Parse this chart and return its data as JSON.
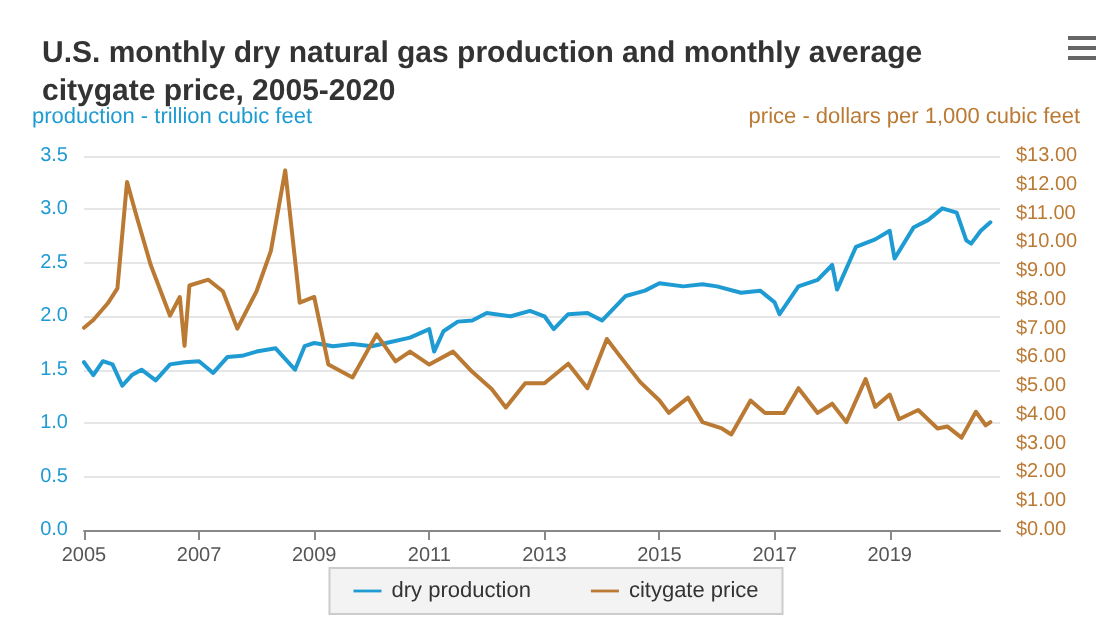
{
  "chart_data": {
    "type": "line",
    "title": "U.S. monthly dry natural gas production and monthly average citygate price, 2005-2020",
    "ylabel": "production - trillion cubic feet",
    "y2label": "price - dollars per 1,000 cubic feet",
    "series": [
      {
        "name": "dry production",
        "color": "#1f9bd3",
        "x": [
          "2005-01",
          "2005-03",
          "2005-05",
          "2005-07",
          "2005-09",
          "2005-11",
          "2006-01",
          "2006-04",
          "2006-07",
          "2006-10",
          "2007-01",
          "2007-04",
          "2007-07",
          "2007-10",
          "2008-01",
          "2008-05",
          "2008-09",
          "2008-11",
          "2009-01",
          "2009-05",
          "2009-09",
          "2010-01",
          "2010-05",
          "2010-09",
          "2011-01",
          "2011-02",
          "2011-04",
          "2011-07",
          "2011-10",
          "2012-01",
          "2012-06",
          "2012-10",
          "2013-01",
          "2013-03",
          "2013-06",
          "2013-10",
          "2014-01",
          "2014-06",
          "2014-10",
          "2015-01",
          "2015-06",
          "2015-10",
          "2016-01",
          "2016-06",
          "2016-10",
          "2017-01",
          "2017-02",
          "2017-06",
          "2017-10",
          "2018-01",
          "2018-02",
          "2018-06",
          "2018-10",
          "2019-01",
          "2019-02",
          "2019-06",
          "2019-09",
          "2019-12",
          "2020-03",
          "2020-05",
          "2020-06",
          "2020-08",
          "2020-10"
        ],
        "values": [
          1.57,
          1.45,
          1.58,
          1.55,
          1.35,
          1.45,
          1.5,
          1.4,
          1.55,
          1.57,
          1.58,
          1.47,
          1.62,
          1.63,
          1.67,
          1.7,
          1.5,
          1.72,
          1.75,
          1.72,
          1.74,
          1.72,
          1.76,
          1.8,
          1.88,
          1.67,
          1.86,
          1.95,
          1.96,
          2.03,
          2.0,
          2.05,
          2.0,
          1.88,
          2.02,
          2.03,
          1.96,
          2.19,
          2.24,
          2.31,
          2.28,
          2.3,
          2.28,
          2.22,
          2.24,
          2.13,
          2.02,
          2.28,
          2.34,
          2.48,
          2.25,
          2.65,
          2.72,
          2.8,
          2.54,
          2.83,
          2.9,
          3.01,
          2.97,
          2.71,
          2.68,
          2.8,
          2.88
        ]
      },
      {
        "name": "citygate price",
        "color": "#bb7a34",
        "axis": "y2",
        "x": [
          "2005-01",
          "2005-03",
          "2005-06",
          "2005-08",
          "2005-10",
          "2005-12",
          "2006-03",
          "2006-07",
          "2006-09",
          "2006-10",
          "2006-11",
          "2007-03",
          "2007-06",
          "2007-09",
          "2008-01",
          "2008-04",
          "2008-07",
          "2008-10",
          "2009-01",
          "2009-04",
          "2009-09",
          "2010-02",
          "2010-06",
          "2010-09",
          "2011-01",
          "2011-06",
          "2011-10",
          "2012-02",
          "2012-05",
          "2012-09",
          "2013-01",
          "2013-06",
          "2013-10",
          "2014-02",
          "2014-05",
          "2014-09",
          "2015-01",
          "2015-03",
          "2015-07",
          "2015-10",
          "2016-02",
          "2016-04",
          "2016-08",
          "2016-11",
          "2017-03",
          "2017-06",
          "2017-10",
          "2018-01",
          "2018-04",
          "2018-08",
          "2018-10",
          "2019-01",
          "2019-03",
          "2019-07",
          "2019-11",
          "2020-01",
          "2020-04",
          "2020-07",
          "2020-09",
          "2020-10"
        ],
        "values": [
          7.03,
          7.3,
          7.88,
          8.4,
          12.1,
          10.9,
          9.2,
          7.45,
          8.1,
          6.4,
          8.5,
          8.7,
          8.3,
          7.0,
          8.3,
          9.7,
          12.5,
          7.9,
          8.1,
          5.75,
          5.3,
          6.8,
          5.86,
          6.2,
          5.75,
          6.2,
          5.5,
          4.9,
          4.26,
          5.1,
          5.1,
          5.78,
          4.93,
          6.64,
          6.0,
          5.14,
          4.5,
          4.07,
          4.6,
          3.75,
          3.53,
          3.32,
          4.5,
          4.07,
          4.07,
          4.93,
          4.07,
          4.39,
          3.75,
          5.25,
          4.28,
          4.71,
          3.85,
          4.17,
          3.53,
          3.6,
          3.21,
          4.11,
          3.64,
          3.75
        ]
      }
    ],
    "xlim": [
      "2005-01",
      "2020-12"
    ],
    "xticks": [
      "2005",
      "2007",
      "2009",
      "2011",
      "2013",
      "2015",
      "2017",
      "2019"
    ],
    "ylim": [
      0,
      3.5
    ],
    "yticks": [
      {
        "value": 0,
        "label": "0.0"
      },
      {
        "value": 0.5,
        "label": "0.5"
      },
      {
        "value": 1,
        "label": "1.0"
      },
      {
        "value": 1.5,
        "label": "1.5"
      },
      {
        "value": 2,
        "label": "2.0"
      },
      {
        "value": 2.5,
        "label": "2.5"
      },
      {
        "value": 3,
        "label": "3.0"
      },
      {
        "value": 3.5,
        "label": "3.5"
      }
    ],
    "y2lim": [
      0,
      13
    ],
    "y2ticks": [
      {
        "value": 0,
        "label": "$0.00"
      },
      {
        "value": 1,
        "label": "$1.00"
      },
      {
        "value": 2,
        "label": "$2.00"
      },
      {
        "value": 3,
        "label": "$3.00"
      },
      {
        "value": 4,
        "label": "$4.00"
      },
      {
        "value": 5,
        "label": "$5.00"
      },
      {
        "value": 6,
        "label": "$6.00"
      },
      {
        "value": 7,
        "label": "$7.00"
      },
      {
        "value": 8,
        "label": "$8.00"
      },
      {
        "value": 9,
        "label": "$9.00"
      },
      {
        "value": 10,
        "label": "$10.00"
      },
      {
        "value": 11,
        "label": "$11.00"
      },
      {
        "value": 12,
        "label": "$12.00"
      },
      {
        "value": 13,
        "label": "$13.00"
      }
    ],
    "grid": "y",
    "legend": "bottom",
    "marker": "none",
    "line_style": "solid"
  }
}
